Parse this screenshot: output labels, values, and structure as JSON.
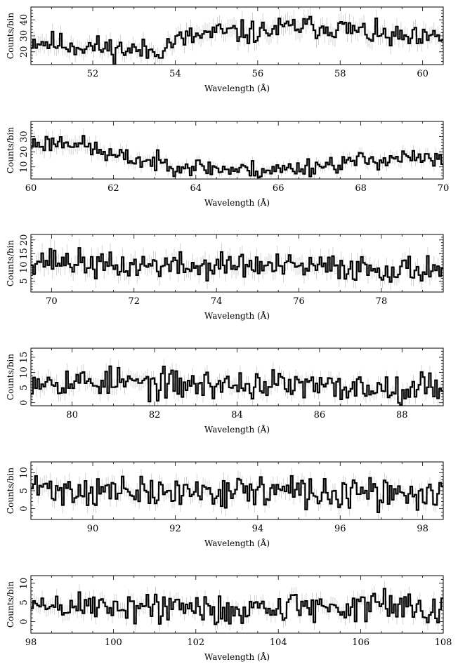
{
  "chart_data": [
    {
      "type": "line",
      "style": "histogram-step-with-error-bars",
      "xlabel": "Wavelength (Å)",
      "ylabel": "Counts/bin",
      "xlim": [
        50.5,
        60.5
      ],
      "ylim": [
        12,
        48
      ],
      "x_ticks": [
        52,
        54,
        56,
        58,
        60
      ],
      "y_ticks": [
        20,
        30,
        40
      ],
      "bin_width": 0.05,
      "grid": false,
      "anchors": [
        [
          50.5,
          27
        ],
        [
          51.5,
          24
        ],
        [
          52.5,
          22
        ],
        [
          53.5,
          20
        ],
        [
          54.0,
          27
        ],
        [
          55.0,
          32
        ],
        [
          56.0,
          32
        ],
        [
          57.0,
          36
        ],
        [
          58.0,
          35
        ],
        [
          59.0,
          30
        ],
        [
          60.0,
          27
        ],
        [
          60.5,
          30
        ]
      ],
      "noise_amplitude": 6,
      "seed": 11
    },
    {
      "type": "line",
      "style": "histogram-step-with-error-bars",
      "xlabel": "Wavelength (Å)",
      "ylabel": "Counts/bin",
      "xlim": [
        60,
        70
      ],
      "ylim": [
        2,
        40
      ],
      "x_ticks": [
        60,
        62,
        64,
        66,
        68,
        70
      ],
      "y_ticks": [
        10,
        20,
        30
      ],
      "bin_width": 0.05,
      "grid": false,
      "anchors": [
        [
          60.0,
          25
        ],
        [
          61.0,
          27
        ],
        [
          62.0,
          17
        ],
        [
          63.0,
          13
        ],
        [
          64.0,
          10
        ],
        [
          65.0,
          8
        ],
        [
          66.0,
          8
        ],
        [
          67.0,
          11
        ],
        [
          68.0,
          14
        ],
        [
          69.0,
          16
        ],
        [
          70.0,
          14
        ]
      ],
      "noise_amplitude": 5,
      "seed": 23
    },
    {
      "type": "line",
      "style": "histogram-step-with-error-bars",
      "xlabel": "Wavelength (Å)",
      "ylabel": "Counts/bin",
      "xlim": [
        69.5,
        79.5
      ],
      "ylim": [
        1,
        22
      ],
      "x_ticks": [
        70,
        72,
        74,
        76,
        78
      ],
      "y_ticks": [
        5,
        10,
        15,
        20
      ],
      "bin_width": 0.05,
      "grid": false,
      "anchors": [
        [
          69.5,
          13
        ],
        [
          70.5,
          12
        ],
        [
          71.5,
          10
        ],
        [
          72.5,
          11
        ],
        [
          73.5,
          10
        ],
        [
          74.5,
          11
        ],
        [
          75.5,
          10
        ],
        [
          76.5,
          10
        ],
        [
          77.5,
          10
        ],
        [
          78.5,
          9
        ],
        [
          79.5,
          10
        ]
      ],
      "noise_amplitude": 4,
      "seed": 37
    },
    {
      "type": "line",
      "style": "histogram-step-with-error-bars",
      "xlabel": "Wavelength (Å)",
      "ylabel": "Counts/bin",
      "xlim": [
        79,
        89
      ],
      "ylim": [
        -1,
        18
      ],
      "x_ticks": [
        80,
        82,
        84,
        86,
        88
      ],
      "y_ticks": [
        0,
        5,
        10,
        15
      ],
      "bin_width": 0.05,
      "grid": false,
      "anchors": [
        [
          79.0,
          8
        ],
        [
          80.0,
          7
        ],
        [
          81.0,
          7
        ],
        [
          82.0,
          6
        ],
        [
          83.0,
          6
        ],
        [
          84.0,
          6
        ],
        [
          85.0,
          6
        ],
        [
          86.0,
          5
        ],
        [
          87.0,
          5
        ],
        [
          88.0,
          5
        ],
        [
          89.0,
          6
        ]
      ],
      "noise_amplitude": 4,
      "seed": 53
    },
    {
      "type": "line",
      "style": "histogram-step-with-error-bars",
      "xlabel": "Wavelength (Å)",
      "ylabel": "Counts/bin",
      "xlim": [
        88.5,
        98.5
      ],
      "ylim": [
        -3,
        13
      ],
      "x_ticks": [
        90,
        92,
        94,
        96,
        98
      ],
      "y_ticks": [
        0,
        5,
        10
      ],
      "bin_width": 0.05,
      "grid": false,
      "anchors": [
        [
          88.5,
          6
        ],
        [
          89.5,
          5
        ],
        [
          90.5,
          5
        ],
        [
          91.5,
          4
        ],
        [
          92.5,
          5
        ],
        [
          93.5,
          5
        ],
        [
          94.5,
          5
        ],
        [
          95.5,
          4
        ],
        [
          96.5,
          4
        ],
        [
          97.5,
          4
        ],
        [
          98.5,
          4
        ]
      ],
      "noise_amplitude": 3.5,
      "seed": 71
    },
    {
      "type": "line",
      "style": "histogram-step-with-error-bars",
      "xlabel": "Wavelength (Å)",
      "ylabel": "Counts/bin",
      "xlim": [
        98,
        108
      ],
      "ylim": [
        -3,
        12
      ],
      "x_ticks": [
        98,
        100,
        102,
        104,
        106,
        108
      ],
      "y_ticks": [
        0,
        5,
        10
      ],
      "bin_width": 0.05,
      "grid": false,
      "anchors": [
        [
          98.0,
          4
        ],
        [
          99.0,
          4
        ],
        [
          100.0,
          4
        ],
        [
          101.0,
          4
        ],
        [
          102.0,
          3
        ],
        [
          103.0,
          3
        ],
        [
          104.0,
          4
        ],
        [
          105.0,
          4
        ],
        [
          106.0,
          4
        ],
        [
          107.0,
          4
        ],
        [
          108.0,
          4
        ]
      ],
      "noise_amplitude": 3.5,
      "seed": 89
    }
  ],
  "colors": {
    "histogram": "#000000",
    "error_bars": "#c8c8c8",
    "frame": "#000000",
    "background": "#ffffff"
  }
}
